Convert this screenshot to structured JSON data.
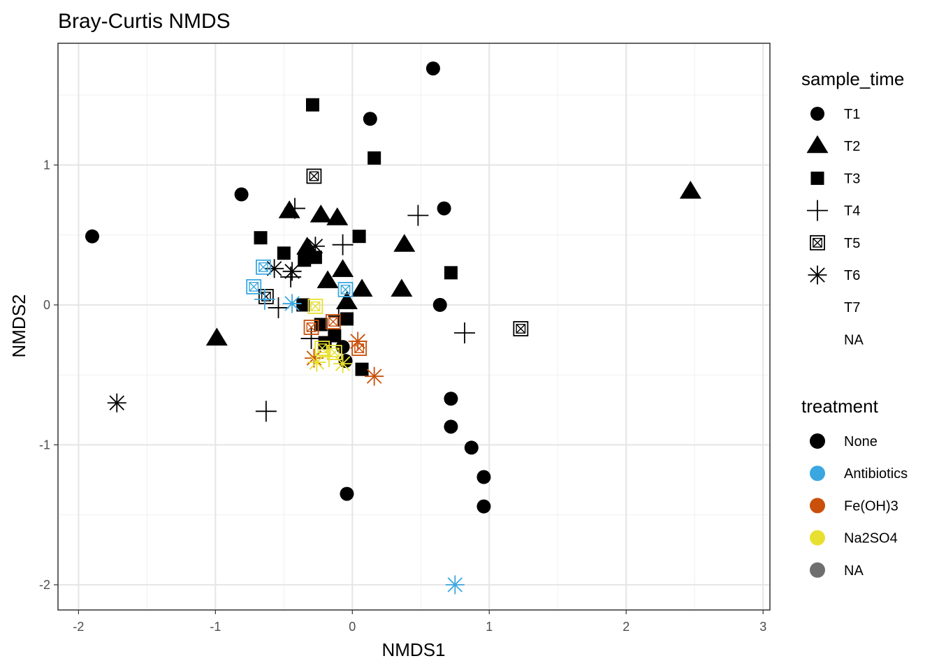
{
  "chart_data": {
    "type": "scatter",
    "title": "Bray-Curtis NMDS",
    "xlabel": "NMDS1",
    "ylabel": "NMDS2",
    "xlim": [
      -2.15,
      3.05
    ],
    "ylim": [
      -2.18,
      1.87
    ],
    "x_ticks": [
      -2,
      -1,
      0,
      1,
      2,
      3
    ],
    "x_tick_labels": [
      "-2",
      "-1",
      "0",
      "1",
      "2",
      "3"
    ],
    "y_ticks": [
      -2,
      -1,
      0,
      1
    ],
    "y_tick_labels": [
      "-2",
      "-1",
      "0",
      "1"
    ],
    "grid": true,
    "legend_position": "right",
    "legend_shape": {
      "title": "sample_time",
      "entries": [
        {
          "label": "T1",
          "shape": "circle"
        },
        {
          "label": "T2",
          "shape": "triangle"
        },
        {
          "label": "T3",
          "shape": "square"
        },
        {
          "label": "T4",
          "shape": "plus"
        },
        {
          "label": "T5",
          "shape": "boxx"
        },
        {
          "label": "T6",
          "shape": "asterisk"
        },
        {
          "label": "T7",
          "shape": "none"
        },
        {
          "label": "NA",
          "shape": "none"
        }
      ]
    },
    "legend_color": {
      "title": "treatment",
      "entries": [
        {
          "label": "None",
          "color": "#000000"
        },
        {
          "label": "Antibiotics",
          "color": "#3BA7E0"
        },
        {
          "label": "Fe(OH)3",
          "color": "#C9500A"
        },
        {
          "label": "Na2SO4",
          "color": "#E8E030"
        },
        {
          "label": "NA",
          "color": "#6E6E6E"
        }
      ]
    },
    "points": [
      {
        "x": 0.59,
        "y": 1.69,
        "time": "T1",
        "treatment": "None"
      },
      {
        "x": 0.13,
        "y": 1.33,
        "time": "T1",
        "treatment": "None"
      },
      {
        "x": -0.81,
        "y": 0.79,
        "time": "T1",
        "treatment": "None"
      },
      {
        "x": -1.9,
        "y": 0.49,
        "time": "T1",
        "treatment": "None"
      },
      {
        "x": 0.67,
        "y": 0.69,
        "time": "T1",
        "treatment": "None"
      },
      {
        "x": 0.64,
        "y": 0.0,
        "time": "T1",
        "treatment": "None"
      },
      {
        "x": 0.72,
        "y": -0.67,
        "time": "T1",
        "treatment": "None"
      },
      {
        "x": 0.72,
        "y": -0.87,
        "time": "T1",
        "treatment": "None"
      },
      {
        "x": 0.87,
        "y": -1.02,
        "time": "T1",
        "treatment": "None"
      },
      {
        "x": 0.96,
        "y": -1.23,
        "time": "T1",
        "treatment": "None"
      },
      {
        "x": 0.96,
        "y": -1.44,
        "time": "T1",
        "treatment": "None"
      },
      {
        "x": -0.04,
        "y": -1.35,
        "time": "T1",
        "treatment": "None"
      },
      {
        "x": -0.07,
        "y": -0.3,
        "time": "T1",
        "treatment": "None"
      },
      {
        "x": -0.05,
        "y": -0.4,
        "time": "T1",
        "treatment": "None"
      },
      {
        "x": 2.47,
        "y": 0.81,
        "time": "T2",
        "treatment": "None"
      },
      {
        "x": -0.46,
        "y": 0.67,
        "time": "T2",
        "treatment": "None"
      },
      {
        "x": -0.23,
        "y": 0.64,
        "time": "T2",
        "treatment": "None"
      },
      {
        "x": -0.11,
        "y": 0.62,
        "time": "T2",
        "treatment": "None"
      },
      {
        "x": 0.38,
        "y": 0.43,
        "time": "T2",
        "treatment": "None"
      },
      {
        "x": -0.33,
        "y": 0.41,
        "time": "T2",
        "treatment": "None"
      },
      {
        "x": -0.07,
        "y": 0.25,
        "time": "T2",
        "treatment": "None"
      },
      {
        "x": -0.18,
        "y": 0.17,
        "time": "T2",
        "treatment": "None"
      },
      {
        "x": 0.36,
        "y": 0.11,
        "time": "T2",
        "treatment": "None"
      },
      {
        "x": 0.07,
        "y": 0.11,
        "time": "T2",
        "treatment": "None"
      },
      {
        "x": -0.04,
        "y": 0.02,
        "time": "T2",
        "treatment": "None"
      },
      {
        "x": -0.99,
        "y": -0.24,
        "time": "T2",
        "treatment": "None"
      },
      {
        "x": -0.29,
        "y": 1.43,
        "time": "T3",
        "treatment": "None"
      },
      {
        "x": 0.16,
        "y": 1.05,
        "time": "T3",
        "treatment": "None"
      },
      {
        "x": -0.67,
        "y": 0.48,
        "time": "T3",
        "treatment": "None"
      },
      {
        "x": 0.05,
        "y": 0.49,
        "time": "T3",
        "treatment": "None"
      },
      {
        "x": -0.5,
        "y": 0.37,
        "time": "T3",
        "treatment": "None"
      },
      {
        "x": -0.35,
        "y": 0.32,
        "time": "T3",
        "treatment": "None"
      },
      {
        "x": -0.27,
        "y": 0.34,
        "time": "T3",
        "treatment": "None"
      },
      {
        "x": 0.72,
        "y": 0.23,
        "time": "T3",
        "treatment": "None"
      },
      {
        "x": -0.36,
        "y": 0.0,
        "time": "T3",
        "treatment": "None"
      },
      {
        "x": -0.04,
        "y": -0.1,
        "time": "T3",
        "treatment": "None"
      },
      {
        "x": -0.23,
        "y": -0.14,
        "time": "T3",
        "treatment": "None"
      },
      {
        "x": -0.13,
        "y": -0.22,
        "time": "T3",
        "treatment": "None"
      },
      {
        "x": -0.2,
        "y": -0.27,
        "time": "T3",
        "treatment": "None"
      },
      {
        "x": 0.07,
        "y": -0.46,
        "time": "T3",
        "treatment": "None"
      },
      {
        "x": -0.42,
        "y": 0.69,
        "time": "T4",
        "treatment": "None"
      },
      {
        "x": 0.48,
        "y": 0.64,
        "time": "T4",
        "treatment": "None"
      },
      {
        "x": -0.07,
        "y": 0.43,
        "time": "T4",
        "treatment": "None"
      },
      {
        "x": -0.45,
        "y": 0.2,
        "time": "T4",
        "treatment": "None"
      },
      {
        "x": -0.54,
        "y": -0.02,
        "time": "T4",
        "treatment": "None"
      },
      {
        "x": 0.82,
        "y": -0.2,
        "time": "T4",
        "treatment": "None"
      },
      {
        "x": -0.63,
        "y": -0.76,
        "time": "T4",
        "treatment": "None"
      },
      {
        "x": -0.3,
        "y": -0.24,
        "time": "T4",
        "treatment": "None"
      },
      {
        "x": -0.1,
        "y": -0.08,
        "time": "T4",
        "treatment": "None"
      },
      {
        "x": -0.28,
        "y": 0.92,
        "time": "T5",
        "treatment": "None"
      },
      {
        "x": -0.63,
        "y": 0.06,
        "time": "T5",
        "treatment": "None"
      },
      {
        "x": 1.23,
        "y": -0.17,
        "time": "T5",
        "treatment": "None"
      },
      {
        "x": -1.72,
        "y": -0.7,
        "time": "T6",
        "treatment": "None"
      },
      {
        "x": -0.57,
        "y": 0.26,
        "time": "T6",
        "treatment": "None"
      },
      {
        "x": -0.27,
        "y": 0.42,
        "time": "T6",
        "treatment": "None"
      },
      {
        "x": -0.44,
        "y": 0.24,
        "time": "T6",
        "treatment": "None"
      },
      {
        "x": -0.65,
        "y": 0.27,
        "time": "T5",
        "treatment": "Antibiotics"
      },
      {
        "x": -0.72,
        "y": 0.13,
        "time": "T5",
        "treatment": "Antibiotics"
      },
      {
        "x": -0.05,
        "y": 0.11,
        "time": "T5",
        "treatment": "Antibiotics"
      },
      {
        "x": -0.64,
        "y": 0.04,
        "time": "T4",
        "treatment": "Antibiotics"
      },
      {
        "x": -0.44,
        "y": 0.01,
        "time": "T6",
        "treatment": "Antibiotics"
      },
      {
        "x": 0.75,
        "y": -2.0,
        "time": "T6",
        "treatment": "Antibiotics"
      },
      {
        "x": -0.3,
        "y": -0.16,
        "time": "T5",
        "treatment": "Fe(OH)3"
      },
      {
        "x": -0.14,
        "y": -0.12,
        "time": "T5",
        "treatment": "Fe(OH)3"
      },
      {
        "x": 0.05,
        "y": -0.31,
        "time": "T5",
        "treatment": "Fe(OH)3"
      },
      {
        "x": 0.04,
        "y": -0.26,
        "time": "T6",
        "treatment": "Fe(OH)3"
      },
      {
        "x": -0.28,
        "y": -0.38,
        "time": "T6",
        "treatment": "Fe(OH)3"
      },
      {
        "x": 0.16,
        "y": -0.51,
        "time": "T6",
        "treatment": "Fe(OH)3"
      },
      {
        "x": -0.27,
        "y": -0.01,
        "time": "T5",
        "treatment": "Na2SO4"
      },
      {
        "x": -0.22,
        "y": -0.31,
        "time": "T5",
        "treatment": "Na2SO4"
      },
      {
        "x": -0.13,
        "y": -0.34,
        "time": "T5",
        "treatment": "Na2SO4"
      },
      {
        "x": -0.26,
        "y": -0.41,
        "time": "T6",
        "treatment": "Na2SO4"
      },
      {
        "x": -0.07,
        "y": -0.42,
        "time": "T6",
        "treatment": "Na2SO4"
      },
      {
        "x": -0.17,
        "y": -0.37,
        "time": "T4",
        "treatment": "Na2SO4"
      }
    ]
  }
}
